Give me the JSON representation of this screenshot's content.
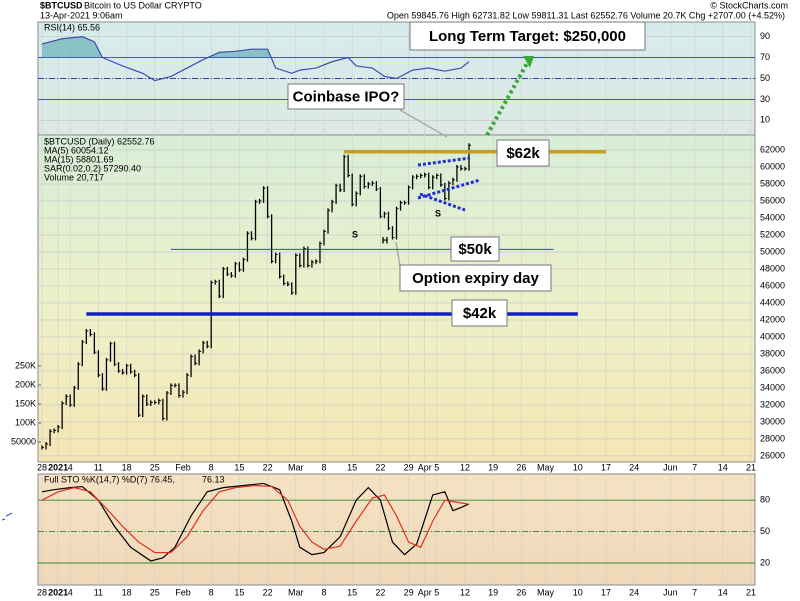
{
  "header": {
    "symbol": "$BTCUSD",
    "name": "Bitcoin to US Dollar CRYPTO",
    "date": "13-Apr-2021 9:06am",
    "quote": "Open 59845.76  High 62731.82  Low 59811.31  Last 62552.76  Volume 20.7K  Chg +2707.00 (+4.52%)",
    "credit": "© StockCharts.com"
  },
  "chart_data": [
    {
      "type": "line",
      "panel": "rsi",
      "label": "RSI(14) 65.56",
      "ylim": [
        -4,
        104
      ],
      "yticks": [
        10,
        30,
        50,
        70,
        90
      ],
      "levels": [
        70,
        50,
        30
      ],
      "fill_above": 70,
      "xlim": [
        0,
        176
      ],
      "series": [
        {
          "name": "RSI(14)",
          "color": "#3b4fb0",
          "x": [
            0,
            5,
            10,
            13,
            15,
            20,
            25,
            28,
            32,
            36,
            40,
            44,
            48,
            52,
            56,
            58,
            62,
            64,
            68,
            72,
            76,
            78,
            82,
            85,
            88,
            92,
            96,
            100,
            104,
            106
          ],
          "values": [
            83,
            88,
            90,
            85,
            70,
            62,
            55,
            48,
            52,
            60,
            68,
            75,
            76,
            78,
            78,
            60,
            55,
            58,
            60,
            66,
            70,
            62,
            60,
            52,
            50,
            58,
            60,
            57,
            60,
            66
          ]
        }
      ]
    },
    {
      "type": "price-bars",
      "panel": "price",
      "legend": [
        {
          "text": "$BTCUSD (Daily) 62552.76",
          "color": "#000000"
        },
        {
          "text": "MA(5) 60054.12",
          "color": "#1a2ea8"
        },
        {
          "text": "MA(15) 58801.69",
          "color": "#d42020"
        },
        {
          "text": "SAR(0.02,0.2) 57290.40",
          "color": "#2e8b2e"
        },
        {
          "text": "Volume 20,717",
          "color": "#6a9a40"
        }
      ],
      "color": "#000000",
      "values": [
        27000,
        27400,
        28900,
        29000,
        29400,
        32200,
        33000,
        32000,
        34000,
        36800,
        39400,
        40700,
        40300,
        38200,
        35500,
        33900,
        37300,
        39200,
        36800,
        36000,
        35800,
        36600,
        35900,
        35500,
        30800,
        33000,
        32100,
        32300,
        32300,
        32500,
        30400,
        33400,
        34300,
        34300,
        33100,
        33500,
        35500,
        37700,
        36900,
        38300,
        39300,
        38900,
        46400,
        46500,
        44800,
        48000,
        47400,
        47200,
        48600,
        47900,
        49100,
        52200,
        51600,
        55900,
        56000,
        57500,
        54200,
        48900,
        49700,
        47100,
        46300,
        46200,
        45200,
        49600,
        48400,
        50400,
        48400,
        48800,
        48900,
        51000,
        52400,
        54900,
        55900,
        57800,
        57300,
        61200,
        59000,
        55600,
        56900,
        58900,
        57700,
        58000,
        58100,
        57400,
        54200,
        54500,
        52800,
        51700,
        55100,
        55800,
        55800,
        57600,
        58800,
        58900,
        59000,
        59100,
        57600,
        58800,
        59000,
        57900,
        56300,
        58100,
        58500,
        60000,
        59800,
        59800,
        62552.76
      ],
      "xlim": [
        0,
        176
      ],
      "xticks": [
        {
          "value": 0,
          "label": "28"
        },
        {
          "value": 4,
          "label": "2021"
        },
        {
          "value": 7,
          "label": "4"
        },
        {
          "value": 14,
          "label": "11"
        },
        {
          "value": 21,
          "label": "18"
        },
        {
          "value": 28,
          "label": "25"
        },
        {
          "value": 35,
          "label": "Feb"
        },
        {
          "value": 42,
          "label": "8"
        },
        {
          "value": 49,
          "label": "15"
        },
        {
          "value": 56,
          "label": "22"
        },
        {
          "value": 63,
          "label": "Mar"
        },
        {
          "value": 70,
          "label": "8"
        },
        {
          "value": 77,
          "label": "15"
        },
        {
          "value": 84,
          "label": "22"
        },
        {
          "value": 91,
          "label": "29"
        },
        {
          "value": 95,
          "label": "Apr"
        },
        {
          "value": 98,
          "label": "5"
        },
        {
          "value": 105,
          "label": "12"
        },
        {
          "value": 112,
          "label": "19"
        },
        {
          "value": 119,
          "label": "26"
        },
        {
          "value": 125,
          "label": "May"
        },
        {
          "value": 133,
          "label": "10"
        },
        {
          "value": 140,
          "label": "17"
        },
        {
          "value": 147,
          "label": "24"
        },
        {
          "value": 156,
          "label": "Jun"
        },
        {
          "value": 162,
          "label": "7"
        },
        {
          "value": 169,
          "label": "14"
        },
        {
          "value": 176,
          "label": "21"
        }
      ],
      "ylim": [
        25400,
        64000
      ],
      "yticks": [
        26000,
        28000,
        30000,
        32000,
        34000,
        36000,
        38000,
        40000,
        42000,
        44000,
        46000,
        48000,
        50000,
        52000,
        54000,
        56000,
        58000,
        60000,
        62000
      ],
      "y2lim": [
        0,
        863000
      ],
      "y2ticks": [
        50000,
        {
          "value": 100000,
          "label": "100K"
        },
        {
          "value": 150000,
          "label": "150K"
        },
        {
          "value": 200000,
          "label": "200K"
        },
        {
          "value": 250000,
          "label": "250K"
        }
      ],
      "hlines": [
        {
          "value": 61800,
          "from": 75,
          "to": 140,
          "color": "#c8a020"
        },
        {
          "value": 50300,
          "from": 32,
          "to": 127,
          "color": "#3050b0"
        },
        {
          "value": 42700,
          "from": 11,
          "to": 133,
          "color": "#1020c0"
        }
      ],
      "annotations": [
        "Long Term Target: $250,000",
        "Coinbase IPO?",
        "$62k",
        "$50k",
        "Option expiry day",
        "$42k"
      ],
      "pattern_labels": [
        "S",
        "H",
        "S"
      ]
    },
    {
      "type": "line",
      "panel": "stoch",
      "label": "Full STO %K(14,7) %D(7) 76.45,",
      "label2": "76.13",
      "ylim": [
        -1,
        105
      ],
      "yticks": [
        20,
        50,
        80
      ],
      "levels": [
        80,
        50,
        20
      ],
      "xlim": [
        0,
        176
      ],
      "xticks": [
        {
          "value": 0,
          "label": "28"
        },
        {
          "value": 4,
          "label": "2021"
        },
        {
          "value": 7,
          "label": "4"
        },
        {
          "value": 14,
          "label": "11"
        },
        {
          "value": 21,
          "label": "18"
        },
        {
          "value": 28,
          "label": "25"
        },
        {
          "value": 35,
          "label": "Feb"
        },
        {
          "value": 42,
          "label": "8"
        },
        {
          "value": 49,
          "label": "15"
        },
        {
          "value": 56,
          "label": "22"
        },
        {
          "value": 63,
          "label": "Mar"
        },
        {
          "value": 70,
          "label": "8"
        },
        {
          "value": 77,
          "label": "15"
        },
        {
          "value": 84,
          "label": "22"
        },
        {
          "value": 91,
          "label": "29"
        },
        {
          "value": 95,
          "label": "Apr"
        },
        {
          "value": 98,
          "label": "5"
        },
        {
          "value": 105,
          "label": "12"
        },
        {
          "value": 112,
          "label": "19"
        },
        {
          "value": 119,
          "label": "26"
        },
        {
          "value": 125,
          "label": "May"
        },
        {
          "value": 133,
          "label": "10"
        },
        {
          "value": 140,
          "label": "17"
        },
        {
          "value": 147,
          "label": "24"
        },
        {
          "value": 156,
          "label": "Jun"
        },
        {
          "value": 162,
          "label": "7"
        },
        {
          "value": 169,
          "label": "14"
        },
        {
          "value": 176,
          "label": "21"
        }
      ],
      "series": [
        {
          "name": "%K",
          "color": "#000000",
          "x": [
            0,
            3,
            7,
            10,
            14,
            18,
            22,
            27,
            30,
            33,
            37,
            41,
            45,
            50,
            55,
            59,
            62,
            64,
            67,
            70,
            74,
            78,
            81,
            84,
            87,
            90,
            93,
            97,
            100,
            102,
            104,
            106
          ],
          "values": [
            88,
            90,
            92,
            93,
            80,
            55,
            35,
            22,
            25,
            35,
            65,
            88,
            92,
            94,
            96,
            90,
            60,
            35,
            28,
            30,
            45,
            80,
            92,
            80,
            40,
            28,
            38,
            85,
            88,
            70,
            73,
            76.45
          ]
        },
        {
          "name": "%D",
          "color": "#e03020",
          "x": [
            0,
            4,
            8,
            12,
            16,
            20,
            24,
            28,
            32,
            36,
            40,
            44,
            48,
            53,
            57,
            61,
            64,
            67,
            70,
            74,
            78,
            82,
            85,
            88,
            91,
            94,
            97,
            100,
            103,
            106
          ],
          "values": [
            80,
            88,
            92,
            88,
            72,
            55,
            40,
            30,
            30,
            45,
            70,
            88,
            92,
            94,
            93,
            80,
            55,
            40,
            33,
            36,
            60,
            82,
            85,
            65,
            40,
            35,
            60,
            80,
            78,
            76.13
          ]
        }
      ]
    }
  ]
}
